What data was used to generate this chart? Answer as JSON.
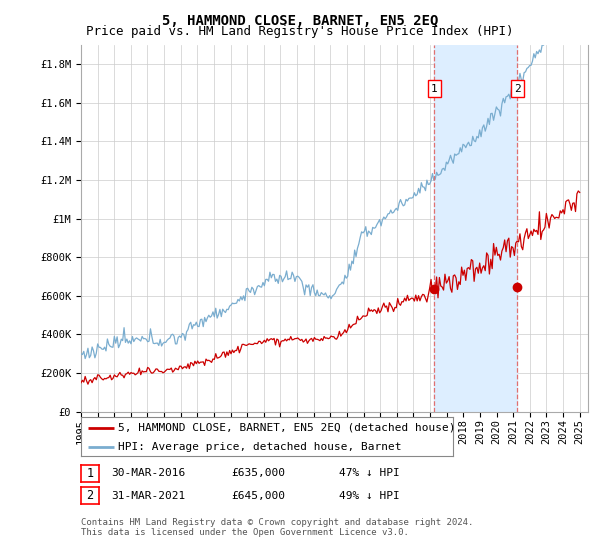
{
  "title": "5, HAMMOND CLOSE, BARNET, EN5 2EQ",
  "subtitle": "Price paid vs. HM Land Registry's House Price Index (HPI)",
  "ylim": [
    0,
    1900000
  ],
  "yticks": [
    0,
    200000,
    400000,
    600000,
    800000,
    1000000,
    1200000,
    1400000,
    1600000,
    1800000
  ],
  "ytick_labels": [
    "£0",
    "£200K",
    "£400K",
    "£600K",
    "£800K",
    "£1M",
    "£1.2M",
    "£1.4M",
    "£1.6M",
    "£1.8M"
  ],
  "xlim_start": 1995.0,
  "xlim_end": 2025.5,
  "sale1_x": 2016.25,
  "sale1_y": 635000,
  "sale2_x": 2021.25,
  "sale2_y": 645000,
  "line_red_color": "#cc0000",
  "line_blue_color": "#7aadcf",
  "shade_color": "#ddeeff",
  "dashed_color": "#e07070",
  "legend_label_red": "5, HAMMOND CLOSE, BARNET, EN5 2EQ (detached house)",
  "legend_label_blue": "HPI: Average price, detached house, Barnet",
  "table_row1": [
    "1",
    "30-MAR-2016",
    "£635,000",
    "47% ↓ HPI"
  ],
  "table_row2": [
    "2",
    "31-MAR-2021",
    "£645,000",
    "49% ↓ HPI"
  ],
  "footer": "Contains HM Land Registry data © Crown copyright and database right 2024.\nThis data is licensed under the Open Government Licence v3.0.",
  "bg_color": "#ffffff",
  "grid_color": "#cccccc",
  "title_fontsize": 10,
  "subtitle_fontsize": 9,
  "tick_fontsize": 7.5,
  "legend_fontsize": 8,
  "table_fontsize": 8,
  "footer_fontsize": 6.5
}
